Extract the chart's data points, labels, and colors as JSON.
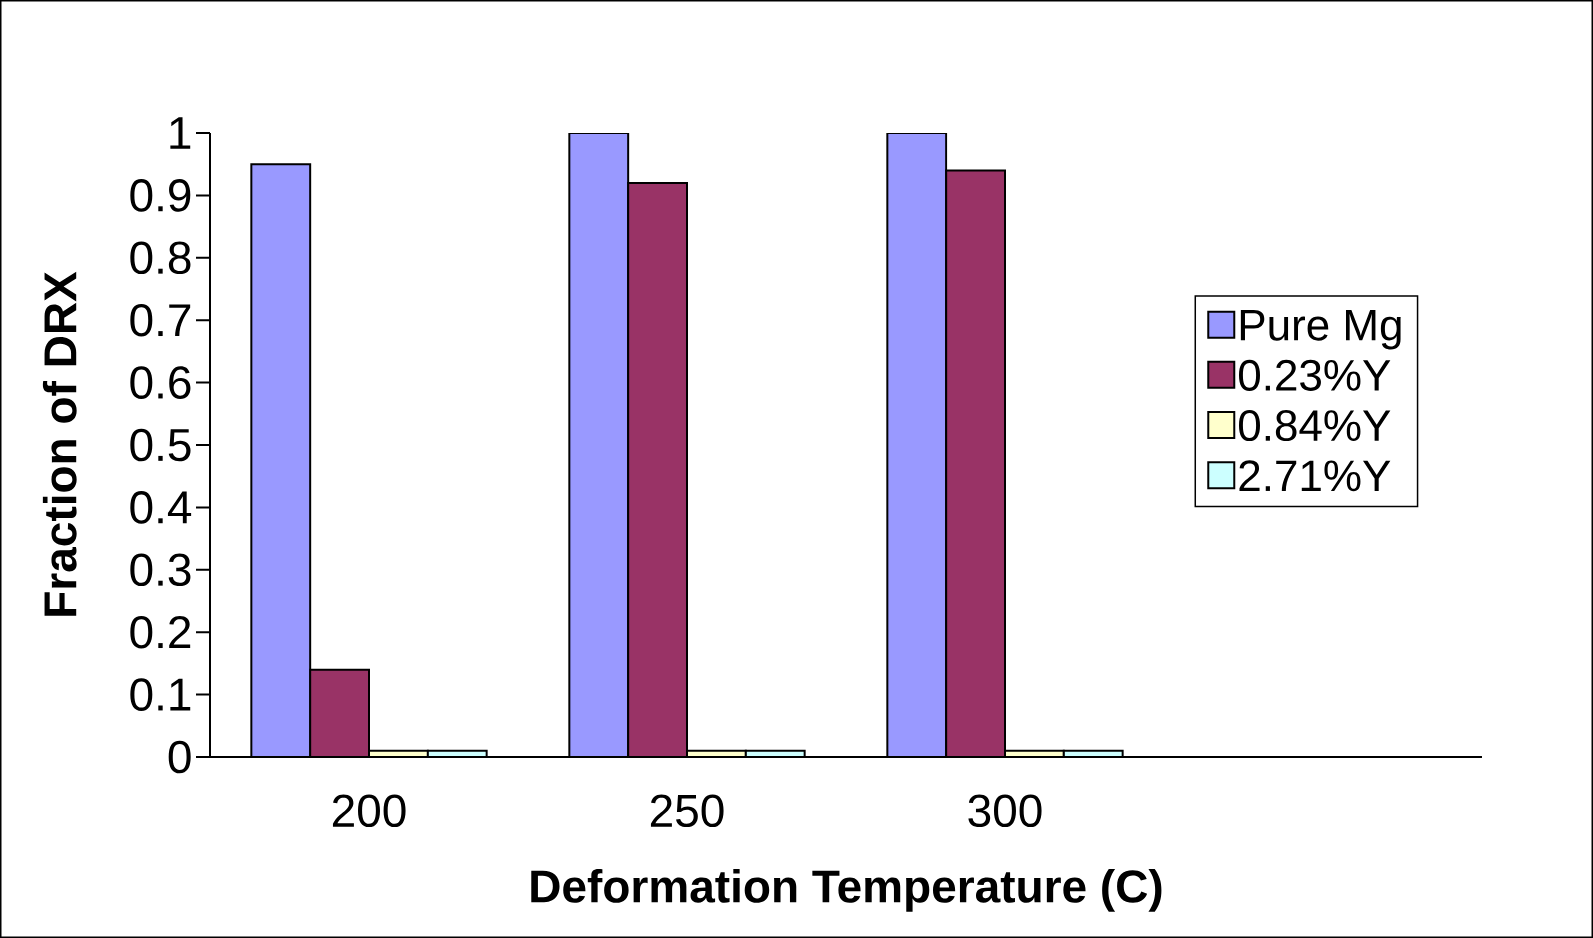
{
  "chart_data": {
    "type": "bar",
    "xlabel": "Deformation Temperature (C)",
    "ylabel": "Fraction of DRX",
    "categories": [
      "200",
      "250",
      "300",
      null
    ],
    "series": [
      {
        "name": "Pure Mg",
        "color": "#9999ff",
        "values": [
          0.95,
          1.0,
          1.0,
          null
        ]
      },
      {
        "name": "0.23%Y",
        "color": "#993366",
        "values": [
          0.14,
          0.92,
          0.94,
          null
        ]
      },
      {
        "name": "0.84%Y",
        "color": "#ffffcc",
        "values": [
          0.01,
          0.01,
          0.01,
          null
        ]
      },
      {
        "name": "2.71%Y",
        "color": "#ccffff",
        "values": [
          0.01,
          0.01,
          0.01,
          null
        ]
      }
    ],
    "ylim": [
      0,
      1
    ],
    "yticks": [
      0,
      0.1,
      0.2,
      0.3,
      0.4,
      0.5,
      0.6,
      0.7,
      0.8,
      0.9,
      1
    ],
    "grid": false,
    "legend": "right"
  }
}
